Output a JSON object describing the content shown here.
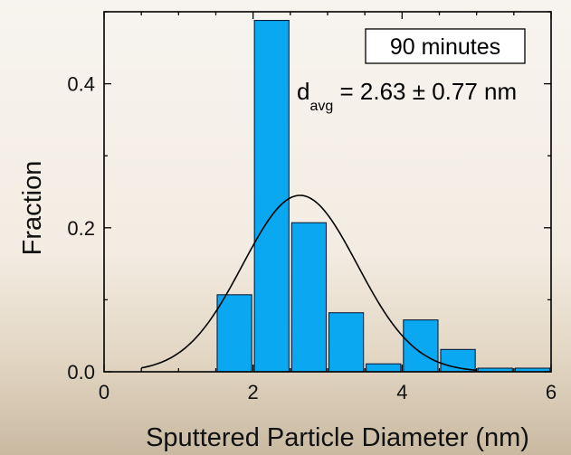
{
  "chart_data": {
    "type": "bar",
    "xlabel": "Sputtered Particle Diameter (nm)",
    "ylabel": "Fraction",
    "xlim": [
      0,
      6
    ],
    "ylim": [
      0,
      0.5
    ],
    "x_ticks": [
      "0",
      "2",
      "4",
      "6"
    ],
    "y_ticks": [
      "0.0",
      "0.2",
      "0.4"
    ],
    "bin_width": 0.5,
    "bins": [
      {
        "x": 1.75,
        "value": 0.107
      },
      {
        "x": 2.25,
        "value": 0.488
      },
      {
        "x": 2.75,
        "value": 0.207
      },
      {
        "x": 3.25,
        "value": 0.082
      },
      {
        "x": 3.75,
        "value": 0.011
      },
      {
        "x": 4.25,
        "value": 0.072
      },
      {
        "x": 4.75,
        "value": 0.031
      },
      {
        "x": 5.25,
        "value": 0.005
      },
      {
        "x": 5.75,
        "value": 0.005
      }
    ],
    "fit": {
      "type": "gaussian",
      "mean": 2.63,
      "sigma": 0.77,
      "peak": 0.245
    },
    "legend_box": "90 minutes",
    "annotation": {
      "main": "d",
      "subscript": "avg",
      "value": " = 2.63 ± 0.77 nm"
    },
    "colors": {
      "bar": "#0aa8f0",
      "bar_edge": "#0d1f3a",
      "fit": "#000000"
    },
    "grid": false
  }
}
